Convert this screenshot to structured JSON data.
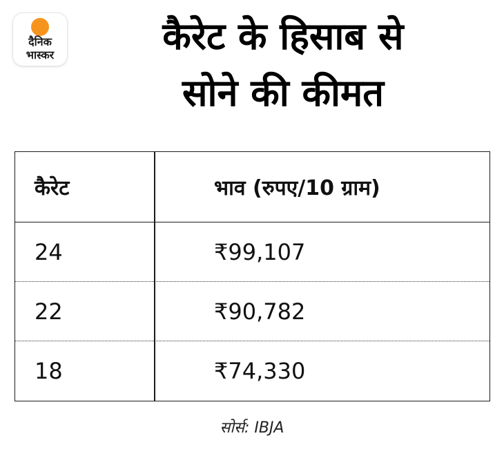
{
  "logo": {
    "line1": "दैनिक",
    "line2": "भास्कर",
    "sun_color": "#f7941d",
    "text_color": "#1a1a1a"
  },
  "title": {
    "line1": "कैरेट के हिसाब से",
    "line2": "सोने की कीमत"
  },
  "chart_data": {
    "type": "table",
    "columns": [
      "कैरेट",
      "भाव (रुपए/10 ग्राम)"
    ],
    "rows": [
      {
        "karat": "24",
        "price": "₹99,107"
      },
      {
        "karat": "22",
        "price": "₹90,782"
      },
      {
        "karat": "18",
        "price": "₹74,330"
      }
    ]
  },
  "source": "सोर्स: IBJA"
}
